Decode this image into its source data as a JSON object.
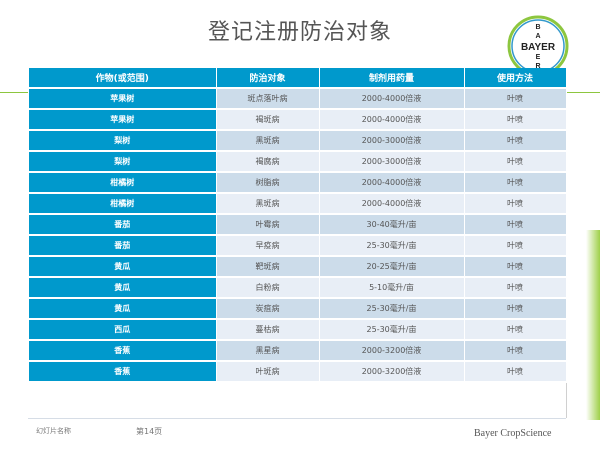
{
  "header": {
    "title": "登记注册防治对象",
    "logo_text": "BAYER"
  },
  "table": {
    "columns": [
      "作物(或范围)",
      "防治对象",
      "制剂用药量",
      "使用方法"
    ],
    "rows": [
      [
        "苹果树",
        "斑点落叶病",
        "2000-4000倍液",
        "叶喷"
      ],
      [
        "苹果树",
        "褐斑病",
        "2000-4000倍液",
        "叶喷"
      ],
      [
        "梨树",
        "黑斑病",
        "2000-3000倍液",
        "叶喷"
      ],
      [
        "梨树",
        "褐腐病",
        "2000-3000倍液",
        "叶喷"
      ],
      [
        "柑橘树",
        "树脂病",
        "2000-4000倍液",
        "叶喷"
      ],
      [
        "柑橘树",
        "黑斑病",
        "2000-4000倍液",
        "叶喷"
      ],
      [
        "番茄",
        "叶霉病",
        "30-40毫升/亩",
        "叶喷"
      ],
      [
        "番茄",
        "早疫病",
        "25-30毫升/亩",
        "叶喷"
      ],
      [
        "黄瓜",
        "靶斑病",
        "20-25毫升/亩",
        "叶喷"
      ],
      [
        "黄瓜",
        "白粉病",
        "5-10毫升/亩",
        "叶喷"
      ],
      [
        "黄瓜",
        "炭疽病",
        "25-30毫升/亩",
        "叶喷"
      ],
      [
        "西瓜",
        "蔓枯病",
        "25-30毫升/亩",
        "叶喷"
      ],
      [
        "香蕉",
        "黑星病",
        "2000-3200倍液",
        "叶喷"
      ],
      [
        "香蕉",
        "叶斑病",
        "2000-3200倍液",
        "叶喷"
      ]
    ]
  },
  "footer": {
    "slide_name": "幻灯片名称",
    "page": "第14页",
    "company": "Bayer CropScience"
  },
  "colors": {
    "header_blue": "#0099cc",
    "row_light": "#e8eef6",
    "row_dark": "#ccdcea",
    "accent_green": "#8dc63f"
  }
}
